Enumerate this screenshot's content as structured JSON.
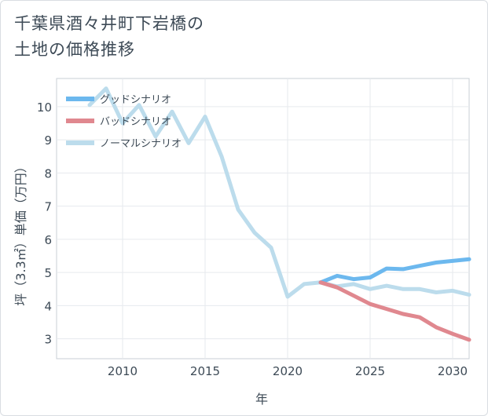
{
  "title_lines": [
    "千葉県酒々井町下岩橋の",
    "土地の価格推移"
  ],
  "chart_data": {
    "type": "line",
    "xlabel": "年",
    "ylabel": "坪（3.3㎡）単価（万円）",
    "xlim": [
      2006,
      2031
    ],
    "ylim": [
      2.4,
      10.85
    ],
    "xticks": [
      2010,
      2015,
      2020,
      2025,
      2030
    ],
    "yticks": [
      3,
      4,
      5,
      6,
      7,
      8,
      9,
      10
    ],
    "grid": true,
    "legend_position": "top-left",
    "series": [
      {
        "name": "グッドシナリオ",
        "color": "#6cb8ee",
        "x": [
          2022,
          2023,
          2024,
          2025,
          2026,
          2027,
          2028,
          2029,
          2030,
          2031
        ],
        "y": [
          4.7,
          4.9,
          4.8,
          4.85,
          5.12,
          5.1,
          5.2,
          5.3,
          5.35,
          5.4
        ]
      },
      {
        "name": "バッドシナリオ",
        "color": "#e0888f",
        "x": [
          2022,
          2023,
          2024,
          2025,
          2026,
          2027,
          2028,
          2029,
          2030,
          2031
        ],
        "y": [
          4.7,
          4.55,
          4.3,
          4.05,
          3.9,
          3.75,
          3.65,
          3.35,
          3.15,
          2.97
        ]
      },
      {
        "name": "ノーマルシナリオ",
        "color": "#bcdcec",
        "x": [
          2008,
          2009,
          2010,
          2011,
          2012,
          2013,
          2014,
          2015,
          2016,
          2017,
          2018,
          2019,
          2020,
          2021,
          2022,
          2023,
          2024,
          2025,
          2026,
          2027,
          2028,
          2029,
          2030,
          2031
        ],
        "y": [
          10.05,
          10.55,
          9.5,
          10.05,
          9.1,
          9.85,
          8.9,
          9.7,
          8.5,
          6.9,
          6.2,
          5.75,
          4.27,
          4.65,
          4.7,
          4.58,
          4.65,
          4.5,
          4.6,
          4.5,
          4.5,
          4.4,
          4.45,
          4.33
        ]
      }
    ]
  }
}
